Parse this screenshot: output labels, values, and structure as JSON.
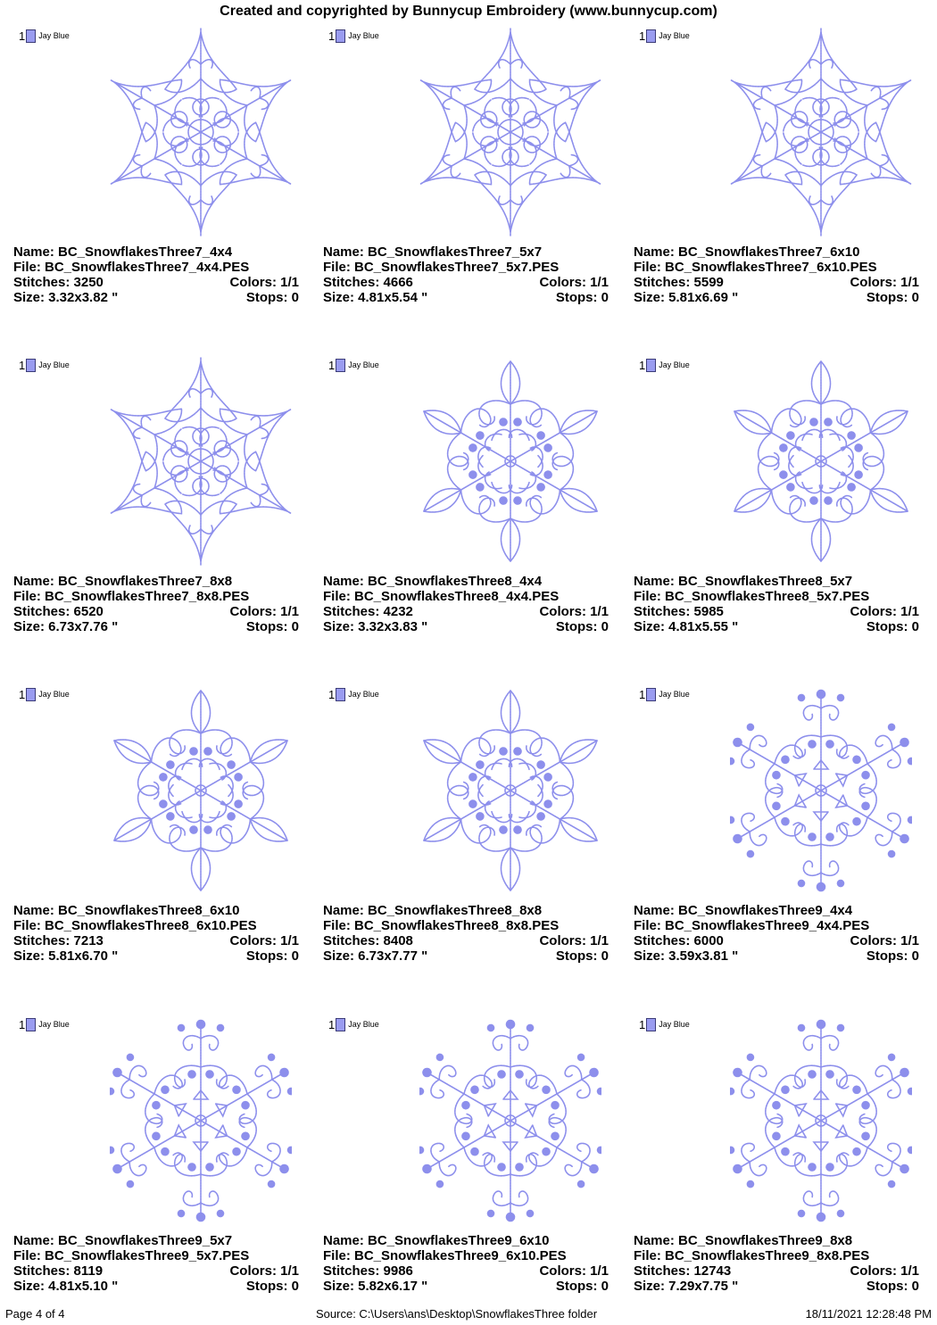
{
  "header": {
    "title": "Created and copyrighted by Bunnycup Embroidery (www.bunnycup.com)"
  },
  "colors": {
    "thread": "#8d8fec"
  },
  "designs": [
    {
      "name": "Name: BC_SnowflakesThree7_4x4",
      "file": "File: BC_SnowflakesThree7_4x4.PES",
      "stitches": "Stitches: 3250",
      "colors": "Colors: 1/1",
      "size": "Size: 3.32x3.82 \"",
      "stops": "Stops: 0",
      "swatch_num": "1",
      "thread": "Jay Blue",
      "style": "star"
    },
    {
      "name": "Name: BC_SnowflakesThree7_5x7",
      "file": "File: BC_SnowflakesThree7_5x7.PES",
      "stitches": "Stitches: 4666",
      "colors": "Colors: 1/1",
      "size": "Size: 4.81x5.54 \"",
      "stops": "Stops: 0",
      "swatch_num": "1",
      "thread": "Jay Blue",
      "style": "star"
    },
    {
      "name": "Name: BC_SnowflakesThree7_6x10",
      "file": "File: BC_SnowflakesThree7_6x10.PES",
      "stitches": "Stitches: 5599",
      "colors": "Colors: 1/1",
      "size": "Size: 5.81x6.69 \"",
      "stops": "Stops: 0",
      "swatch_num": "1",
      "thread": "Jay Blue",
      "style": "star"
    },
    {
      "name": "Name: BC_SnowflakesThree7_8x8",
      "file": "File: BC_SnowflakesThree7_8x8.PES",
      "stitches": "Stitches: 6520",
      "colors": "Colors: 1/1",
      "size": "Size: 6.73x7.76 \"",
      "stops": "Stops: 0",
      "swatch_num": "1",
      "thread": "Jay Blue",
      "style": "star"
    },
    {
      "name": "Name: BC_SnowflakesThree8_4x4",
      "file": "File: BC_SnowflakesThree8_4x4.PES",
      "stitches": "Stitches: 4232",
      "colors": "Colors: 1/1",
      "size": "Size: 3.32x3.83 \"",
      "stops": "Stops: 0",
      "swatch_num": "1",
      "thread": "Jay Blue",
      "style": "fleur"
    },
    {
      "name": "Name: BC_SnowflakesThree8_5x7",
      "file": "File: BC_SnowflakesThree8_5x7.PES",
      "stitches": "Stitches: 5985",
      "colors": "Colors: 1/1",
      "size": "Size: 4.81x5.55 \"",
      "stops": "Stops: 0",
      "swatch_num": "1",
      "thread": "Jay Blue",
      "style": "fleur"
    },
    {
      "name": "Name: BC_SnowflakesThree8_6x10",
      "file": "File: BC_SnowflakesThree8_6x10.PES",
      "stitches": "Stitches: 7213",
      "colors": "Colors: 1/1",
      "size": "Size: 5.81x6.70 \"",
      "stops": "Stops: 0",
      "swatch_num": "1",
      "thread": "Jay Blue",
      "style": "fleur"
    },
    {
      "name": "Name: BC_SnowflakesThree8_8x8",
      "file": "File: BC_SnowflakesThree8_8x8.PES",
      "stitches": "Stitches: 8408",
      "colors": "Colors: 1/1",
      "size": "Size: 6.73x7.77 \"",
      "stops": "Stops: 0",
      "swatch_num": "1",
      "thread": "Jay Blue",
      "style": "fleur"
    },
    {
      "name": "Name: BC_SnowflakesThree9_4x4",
      "file": "File: BC_SnowflakesThree9_4x4.PES",
      "stitches": "Stitches: 6000",
      "colors": "Colors: 1/1",
      "size": "Size: 3.59x3.81 \"",
      "stops": "Stops: 0",
      "swatch_num": "1",
      "thread": "Jay Blue",
      "style": "swirl"
    },
    {
      "name": "Name: BC_SnowflakesThree9_5x7",
      "file": "File: BC_SnowflakesThree9_5x7.PES",
      "stitches": "Stitches: 8119",
      "colors": "Colors: 1/1",
      "size": "Size: 4.81x5.10 \"",
      "stops": "Stops: 0",
      "swatch_num": "1",
      "thread": "Jay Blue",
      "style": "swirl"
    },
    {
      "name": "Name: BC_SnowflakesThree9_6x10",
      "file": "File: BC_SnowflakesThree9_6x10.PES",
      "stitches": "Stitches: 9986",
      "colors": "Colors: 1/1",
      "size": "Size: 5.82x6.17 \"",
      "stops": "Stops: 0",
      "swatch_num": "1",
      "thread": "Jay Blue",
      "style": "swirl"
    },
    {
      "name": "Name: BC_SnowflakesThree9_8x8",
      "file": "File: BC_SnowflakesThree9_8x8.PES",
      "stitches": "Stitches: 12743",
      "colors": "Colors: 1/1",
      "size": "Size: 7.29x7.75 \"",
      "stops": "Stops: 0",
      "swatch_num": "1",
      "thread": "Jay Blue",
      "style": "swirl"
    }
  ],
  "footer": {
    "page": "Page 4 of 4",
    "source": "Source: C:\\Users\\ans\\Desktop\\SnowflakesThree folder",
    "timestamp": "18/11/2021 12:28:48 PM"
  }
}
